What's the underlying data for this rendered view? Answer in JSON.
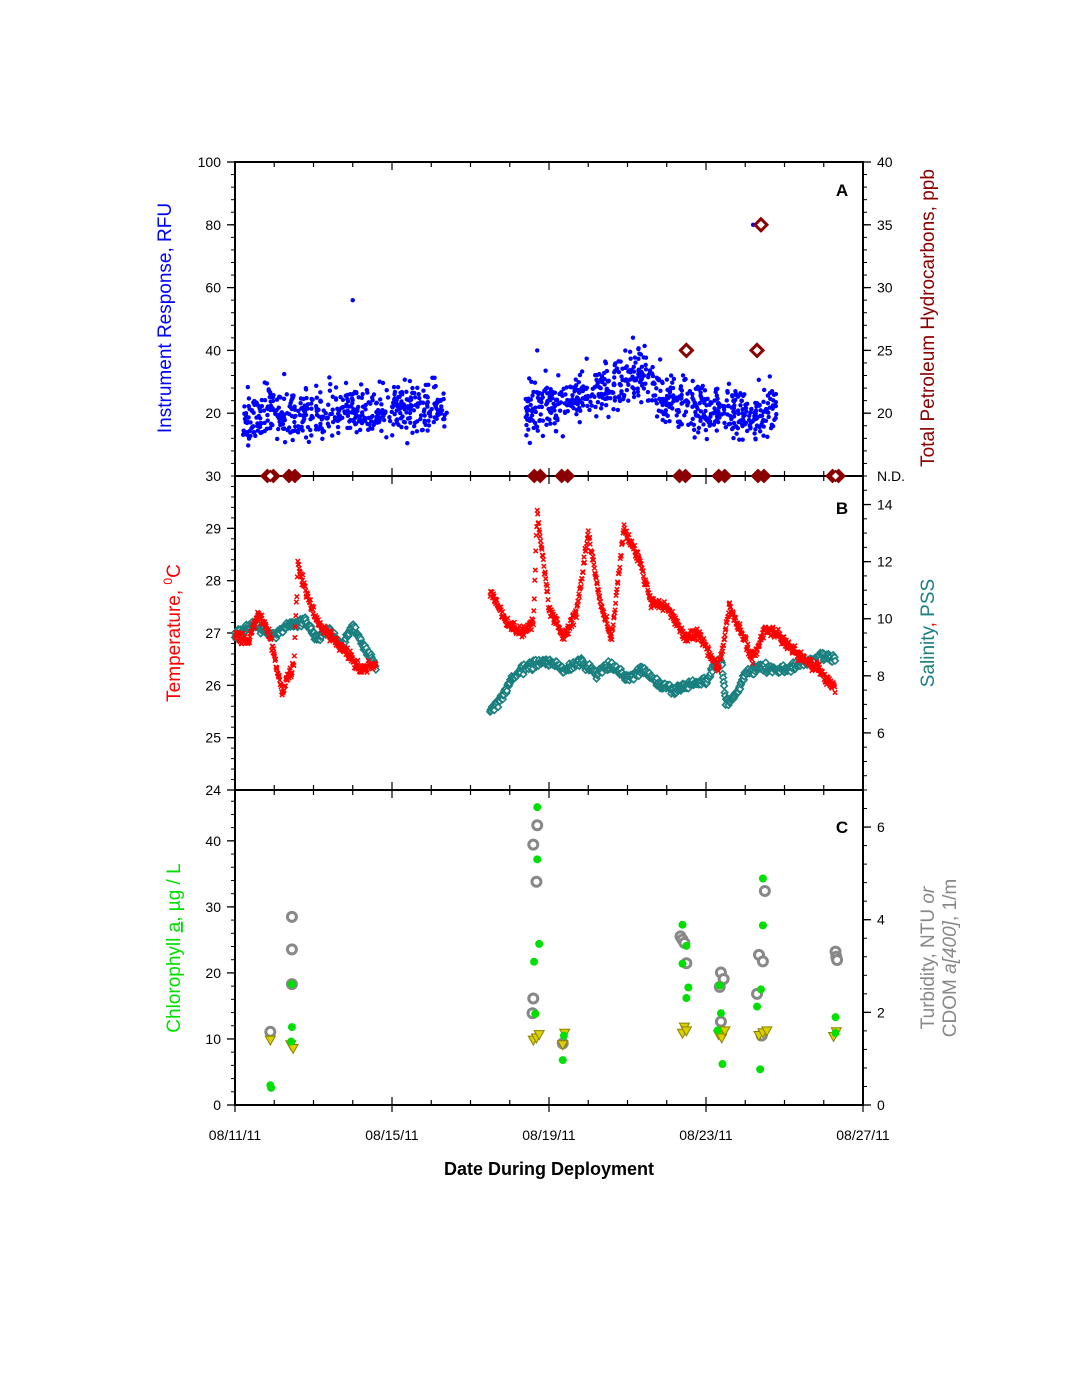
{
  "colors": {
    "rfu": "#0000ff",
    "tph": "#8b0000",
    "temperature": "#ff0000",
    "salinity": "#1a7f7f",
    "chlorophyll": "#00e000",
    "turbidity": "#888888",
    "cdom": "#d8d000",
    "axis": "#000000"
  },
  "x_axis": {
    "label": "Date During Deployment",
    "tick_labels": [
      "08/11/11",
      "08/15/11",
      "08/19/11",
      "08/23/11",
      "08/27/11"
    ],
    "range_days": [
      0,
      16
    ]
  },
  "panel_a": {
    "letter": "A",
    "left_label": "Instrument Response, RFU",
    "right_label": "Total Petroleum Hydrocarbons, ppb",
    "left_ticks": [
      "100",
      "80",
      "60",
      "40",
      "20"
    ],
    "left_bottom_tick": "30",
    "right_ticks": [
      "40",
      "35",
      "30",
      "25",
      "20"
    ],
    "right_nd_label": "N.D."
  },
  "panel_b": {
    "letter": "B",
    "left_label_main": "Temperature, ",
    "left_label_sup": "0",
    "left_label_unit": "C",
    "right_label_main": "Salinity",
    "right_label_sep": ", ",
    "right_label_unit": "PSS",
    "left_ticks": [
      "29",
      "28",
      "27",
      "26",
      "25",
      "24"
    ],
    "right_ticks": [
      "14",
      "12",
      "10",
      "8",
      "6"
    ]
  },
  "panel_c": {
    "letter": "C",
    "left_label_main": "Chlorophyll ",
    "left_label_a": "a",
    "left_label_unit": ", µg / L",
    "right_label_line1_a": "Turbidity, NTU ",
    "right_label_line1_or": "or",
    "right_label_line2_a": "CDOM ",
    "right_label_line2_b": "a[400]",
    "right_label_line2_c": ", 1/m",
    "left_ticks": [
      "40",
      "30",
      "20",
      "10",
      "0"
    ],
    "right_ticks": [
      "6",
      "4",
      "2",
      "0"
    ]
  },
  "chart_data": [
    {
      "panel": "A",
      "type": "scatter",
      "x_units": "days since 08/11/11",
      "ylim_left": [
        0,
        100
      ],
      "ylim_right": [
        15,
        40
      ],
      "series": [
        {
          "name": "Instrument Response, RFU",
          "segments": [
            {
              "x_range": [
                0.2,
                13.8
              ],
              "y_mean": 20,
              "y_spread": 9,
              "gap_x": [
                5.4,
                7.4
              ]
            }
          ],
          "trend_points": [
            [
              0.2,
              18
            ],
            [
              1.5,
              20
            ],
            [
              3,
              21
            ],
            [
              4.5,
              22
            ],
            [
              5.4,
              21
            ],
            [
              7.4,
              20
            ],
            [
              8.5,
              24
            ],
            [
              9.5,
              28
            ],
            [
              10.3,
              33
            ],
            [
              11,
              24
            ],
            [
              12,
              21
            ],
            [
              13.8,
              20
            ]
          ],
          "outliers": [
            [
              3.0,
              56
            ],
            [
              7.7,
              40
            ],
            [
              13.2,
              80
            ]
          ]
        },
        {
          "name": "Total Petroleum Hydrocarbons, ppb (detected)",
          "points": [
            [
              13.4,
              35
            ],
            [
              11.5,
              25
            ],
            [
              13.3,
              25
            ]
          ]
        },
        {
          "name": "Total Petroleum Hydrocarbons, ppb (N.D.)",
          "x": [
            0.9,
            1.45,
            7.7,
            8.4,
            11.4,
            12.4,
            13.4,
            15.3
          ]
        }
      ]
    },
    {
      "panel": "B",
      "type": "scatter",
      "x_units": "days since 08/11/11",
      "ylim_left": [
        24,
        30
      ],
      "ylim_right": [
        4,
        15
      ],
      "series": [
        {
          "name": "Temperature, °C",
          "points": [
            [
              0,
              27.0
            ],
            [
              0.3,
              26.8
            ],
            [
              0.6,
              27.4
            ],
            [
              0.9,
              26.9
            ],
            [
              1.2,
              25.9
            ],
            [
              1.5,
              26.4
            ],
            [
              1.6,
              28.3
            ],
            [
              1.8,
              27.8
            ],
            [
              2.1,
              27.2
            ],
            [
              2.5,
              26.9
            ],
            [
              2.9,
              26.6
            ],
            [
              3.2,
              26.3
            ],
            [
              3.6,
              26.4
            ],
            [
              6.5,
              27.8
            ],
            [
              6.9,
              27.2
            ],
            [
              7.3,
              27.0
            ],
            [
              7.6,
              27.2
            ],
            [
              7.7,
              29.3
            ],
            [
              8.0,
              27.5
            ],
            [
              8.4,
              26.9
            ],
            [
              8.7,
              27.4
            ],
            [
              9.0,
              28.9
            ],
            [
              9.3,
              27.6
            ],
            [
              9.6,
              26.9
            ],
            [
              9.9,
              29.0
            ],
            [
              10.3,
              28.4
            ],
            [
              10.6,
              27.6
            ],
            [
              11.0,
              27.5
            ],
            [
              11.5,
              26.9
            ],
            [
              11.8,
              27.0
            ],
            [
              12.1,
              26.6
            ],
            [
              12.3,
              26.3
            ],
            [
              12.4,
              26.6
            ],
            [
              12.6,
              27.5
            ],
            [
              12.9,
              27.0
            ],
            [
              13.2,
              26.5
            ],
            [
              13.5,
              27.1
            ],
            [
              13.9,
              26.9
            ],
            [
              14.3,
              26.6
            ],
            [
              14.7,
              26.4
            ],
            [
              15.0,
              26.2
            ],
            [
              15.3,
              25.9
            ]
          ]
        },
        {
          "name": "Salinity, PSS",
          "points": [
            [
              0,
              9.4
            ],
            [
              0.5,
              9.8
            ],
            [
              1.0,
              9.4
            ],
            [
              1.4,
              9.8
            ],
            [
              1.8,
              9.9
            ],
            [
              2.1,
              9.3
            ],
            [
              2.4,
              9.6
            ],
            [
              2.7,
              9.1
            ],
            [
              3.0,
              9.7
            ],
            [
              3.3,
              9.0
            ],
            [
              3.6,
              8.3
            ],
            [
              6.5,
              6.8
            ],
            [
              6.8,
              7.2
            ],
            [
              7.0,
              7.8
            ],
            [
              7.3,
              8.2
            ],
            [
              7.6,
              8.4
            ],
            [
              8.0,
              8.5
            ],
            [
              8.4,
              8.2
            ],
            [
              8.8,
              8.5
            ],
            [
              9.2,
              8.1
            ],
            [
              9.6,
              8.4
            ],
            [
              10.0,
              7.9
            ],
            [
              10.4,
              8.2
            ],
            [
              10.8,
              7.7
            ],
            [
              11.2,
              7.5
            ],
            [
              11.6,
              7.7
            ],
            [
              12.0,
              7.8
            ],
            [
              12.2,
              8.3
            ],
            [
              12.4,
              8.5
            ],
            [
              12.5,
              7.0
            ],
            [
              12.8,
              7.4
            ],
            [
              13.0,
              8.1
            ],
            [
              13.4,
              8.3
            ],
            [
              13.8,
              8.2
            ],
            [
              14.2,
              8.3
            ],
            [
              14.6,
              8.5
            ],
            [
              15.0,
              8.7
            ],
            [
              15.3,
              8.6
            ]
          ]
        }
      ]
    },
    {
      "panel": "C",
      "type": "scatter",
      "x_units": "days since 08/11/11",
      "ylim_left": [
        0,
        47.7
      ],
      "ylim_right": [
        0,
        6.8
      ],
      "series": [
        {
          "name": "Chlorophyll a, µg / L",
          "points": [
            [
              0.9,
              3
            ],
            [
              0.92,
              2.6
            ],
            [
              1.45,
              18.3
            ],
            [
              1.45,
              11.8
            ],
            [
              1.43,
              9.6
            ],
            [
              7.7,
              45.1
            ],
            [
              7.7,
              37.2
            ],
            [
              7.75,
              24.4
            ],
            [
              7.62,
              21.7
            ],
            [
              7.65,
              13.8
            ],
            [
              8.35,
              6.8
            ],
            [
              8.38,
              10.5
            ],
            [
              11.4,
              27.3
            ],
            [
              11.5,
              24.1
            ],
            [
              11.4,
              21.4
            ],
            [
              11.55,
              17.8
            ],
            [
              11.5,
              16.2
            ],
            [
              12.35,
              18.1
            ],
            [
              12.38,
              13.9
            ],
            [
              12.3,
              11.3
            ],
            [
              12.42,
              6.2
            ],
            [
              13.45,
              34.3
            ],
            [
              13.45,
              27.2
            ],
            [
              13.4,
              17.5
            ],
            [
              13.3,
              14.9
            ],
            [
              13.38,
              5.4
            ],
            [
              15.3,
              13.3
            ],
            [
              15.3,
              10.9
            ]
          ]
        },
        {
          "name": "Turbidity, NTU",
          "points": [
            [
              0.9,
              1.58
            ],
            [
              1.45,
              4.06
            ],
            [
              1.45,
              3.36
            ],
            [
              1.45,
              2.61
            ],
            [
              7.7,
              6.04
            ],
            [
              7.6,
              5.62
            ],
            [
              7.68,
              4.82
            ],
            [
              7.6,
              2.3
            ],
            [
              7.58,
              1.98
            ],
            [
              8.35,
              1.33
            ],
            [
              11.35,
              3.64
            ],
            [
              11.4,
              3.57
            ],
            [
              11.45,
              3.5
            ],
            [
              11.5,
              3.06
            ],
            [
              12.38,
              2.86
            ],
            [
              12.45,
              2.72
            ],
            [
              12.35,
              2.55
            ],
            [
              12.38,
              1.8
            ],
            [
              13.5,
              4.62
            ],
            [
              13.35,
              3.24
            ],
            [
              13.45,
              3.1
            ],
            [
              13.3,
              2.4
            ],
            [
              13.42,
              1.5
            ],
            [
              15.3,
              3.31
            ],
            [
              15.32,
              3.2
            ],
            [
              15.34,
              3.13
            ]
          ]
        },
        {
          "name": "CDOM a[400], 1/m",
          "points": [
            [
              0.9,
              1.4
            ],
            [
              1.42,
              1.3
            ],
            [
              1.48,
              1.22
            ],
            [
              7.6,
              1.4
            ],
            [
              7.68,
              1.45
            ],
            [
              7.75,
              1.52
            ],
            [
              8.35,
              1.3
            ],
            [
              8.4,
              1.55
            ],
            [
              11.4,
              1.55
            ],
            [
              11.45,
              1.68
            ],
            [
              11.5,
              1.6
            ],
            [
              12.32,
              1.52
            ],
            [
              12.4,
              1.45
            ],
            [
              12.48,
              1.6
            ],
            [
              13.35,
              1.5
            ],
            [
              13.45,
              1.56
            ],
            [
              13.55,
              1.6
            ],
            [
              15.25,
              1.48
            ],
            [
              15.32,
              1.58
            ]
          ]
        }
      ]
    }
  ]
}
